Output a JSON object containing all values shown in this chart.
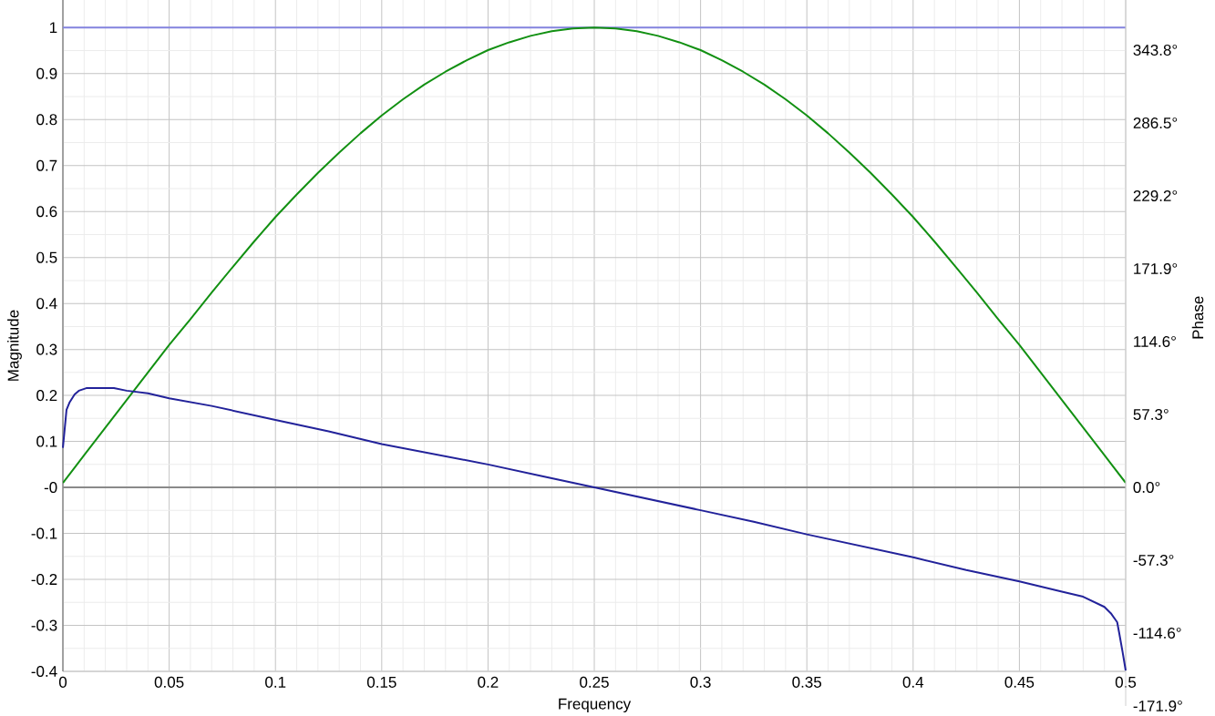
{
  "chart_data": {
    "type": "line",
    "xlabel": "Frequency",
    "ylabel": "Magnitude",
    "y2label": "Phase",
    "xlim": [
      0,
      0.5
    ],
    "xticks": [
      0,
      0.05,
      0.1,
      0.15,
      0.2,
      0.25,
      0.3,
      0.35,
      0.4,
      0.45,
      0.5
    ],
    "ylim": [
      -0.4,
      1.06
    ],
    "yticks": [
      -0.4,
      -0.3,
      -0.2,
      -0.1,
      {
        "value": 0,
        "label": "-0"
      },
      0.1,
      0.2,
      0.3,
      0.4,
      0.5,
      0.6,
      0.7,
      0.8,
      0.9,
      1
    ],
    "y2lim": [
      -171.9,
      383.2
    ],
    "y2ticks": [
      {
        "value": -171.9,
        "label": "-171.9°"
      },
      {
        "value": -114.6,
        "label": "-114.6°"
      },
      {
        "value": -57.3,
        "label": "-57.3°"
      },
      {
        "value": 0,
        "label": "0.0°"
      },
      {
        "value": 57.3,
        "label": "57.3°"
      },
      {
        "value": 114.6,
        "label": "114.6°"
      },
      {
        "value": 171.9,
        "label": "171.9°"
      },
      {
        "value": 229.2,
        "label": "229.2°"
      },
      {
        "value": 286.5,
        "label": "286.5°"
      },
      {
        "value": 343.8,
        "label": "343.8°"
      }
    ],
    "grid": true,
    "ref_lines": [
      {
        "axis": "y",
        "value": 0,
        "color": "#8a8a8a"
      },
      {
        "axis": "y",
        "value": 1,
        "color": "#8484e0"
      }
    ],
    "series": [
      {
        "color": "#129012",
        "x": [
          0,
          0.01,
          0.02,
          0.03,
          0.04,
          0.05,
          0.06,
          0.07,
          0.08,
          0.09,
          0.1,
          0.11,
          0.12,
          0.13,
          0.14,
          0.15,
          0.16,
          0.17,
          0.18,
          0.19,
          0.2,
          0.21,
          0.22,
          0.23,
          0.24,
          0.25,
          0.26,
          0.27,
          0.28,
          0.29,
          0.3,
          0.31,
          0.32,
          0.33,
          0.34,
          0.35,
          0.36,
          0.37,
          0.38,
          0.39,
          0.4,
          0.41,
          0.42,
          0.43,
          0.44,
          0.45,
          0.46,
          0.47,
          0.48,
          0.49,
          0.5
        ],
        "values": [
          0.01,
          0.07,
          0.13,
          0.19,
          0.25,
          0.31,
          0.366,
          0.424,
          0.48,
          0.535,
          0.588,
          0.637,
          0.684,
          0.728,
          0.77,
          0.809,
          0.844,
          0.876,
          0.904,
          0.929,
          0.951,
          0.968,
          0.982,
          0.992,
          0.998,
          1.0,
          0.998,
          0.992,
          0.982,
          0.968,
          0.951,
          0.929,
          0.904,
          0.876,
          0.844,
          0.809,
          0.77,
          0.728,
          0.684,
          0.637,
          0.588,
          0.535,
          0.48,
          0.424,
          0.366,
          0.31,
          0.25,
          0.19,
          0.13,
          0.07,
          0.01
        ]
      },
      {
        "color": "#22229a",
        "axis": "y2",
        "x": [
          0,
          0.0017,
          0.0032,
          0.0055,
          0.0075,
          0.011,
          0.024,
          0.03,
          0.04,
          0.05,
          0.07,
          0.1,
          0.125,
          0.15,
          0.175,
          0.2,
          0.225,
          0.25,
          0.275,
          0.3,
          0.325,
          0.35,
          0.375,
          0.4,
          0.425,
          0.45,
          0.47,
          0.48,
          0.49,
          0.493,
          0.496,
          0.497,
          0.4985,
          0.5
        ],
        "values": [
          31,
          61,
          67,
          73,
          76,
          78,
          78,
          76,
          74,
          70,
          64,
          53,
          44,
          34,
          26,
          18,
          9,
          0,
          -9,
          -18,
          -27,
          -37,
          -46,
          -55,
          -65,
          -74,
          -82,
          -86,
          -94,
          -99,
          -106,
          -115,
          -129,
          -144
        ]
      }
    ]
  }
}
